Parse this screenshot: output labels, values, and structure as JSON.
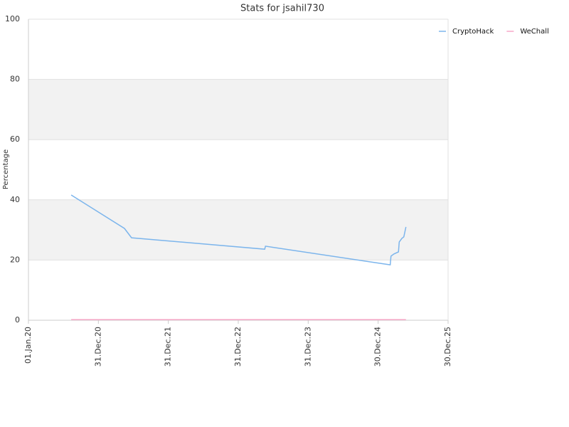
{
  "chart_data": {
    "type": "line",
    "title": "Stats for jsahil730",
    "y_label": "Percentage",
    "x": [
      "2020-08-11",
      "2021-05-16",
      "2021-06-22",
      "2023-05-18",
      "2023-05-22",
      "2025-03-03",
      "2025-03-07",
      "2025-03-22",
      "2025-04-15",
      "2025-04-19",
      "2025-05-03",
      "2025-05-13",
      "2025-05-24"
    ],
    "series": [
      {
        "name": "CryptoHack",
        "color": "#7cb5ec",
        "values": [
          41.6,
          30.5,
          27.4,
          23.6,
          24.6,
          18.4,
          21.3,
          22.0,
          22.7,
          26.0,
          27.2,
          27.7,
          31.0
        ]
      },
      {
        "name": "WeChall",
        "color": "#f7a8c8",
        "values": [
          0.2,
          0.2,
          0.2,
          0.2,
          0.2,
          0.2,
          0.2,
          0.2,
          0.2,
          0.2,
          0.2,
          0.2,
          0.2
        ]
      }
    ],
    "xlim": [
      "2020-01-01",
      "2025-12-30"
    ],
    "xticks": [
      {
        "value": "2020-01-01",
        "label": "01.Jan.20"
      },
      {
        "value": "2020-12-31",
        "label": "31.Dec.20"
      },
      {
        "value": "2021-12-31",
        "label": "31.Dec.21"
      },
      {
        "value": "2022-12-31",
        "label": "31.Dec.22"
      },
      {
        "value": "2023-12-31",
        "label": "31.Dec.23"
      },
      {
        "value": "2024-12-30",
        "label": "30.Dec.24"
      },
      {
        "value": "2025-12-30",
        "label": "30.Dec.25"
      }
    ],
    "ylim": [
      0,
      100
    ],
    "yticks": [
      0,
      20,
      40,
      60,
      80,
      100
    ],
    "grid": true,
    "band_color": "#f2f2f2",
    "legend": "top-right"
  }
}
